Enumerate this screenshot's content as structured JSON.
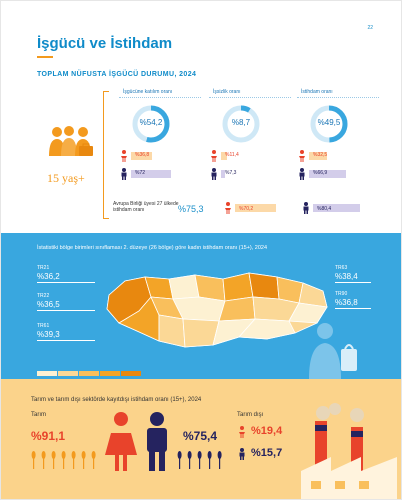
{
  "page_number": "22",
  "title": "İşgücü ve İstihdam",
  "subtitle": "TOPLAM NÜFUSTA İŞGÜCÜ DURUMU, 2024",
  "age_group": "15 yaş+",
  "columns": [
    {
      "title": "İşgücüne katılım oranı",
      "total": "%54,2",
      "female": "%36,8",
      "male": "%72",
      "total_frac": 0.542,
      "female_frac": 0.368,
      "male_frac": 0.72
    },
    {
      "title": "İşsizlik oranı",
      "total": "%8,7",
      "female": "%11,4",
      "male": "%7,3",
      "total_frac": 0.087,
      "female_frac": 0.114,
      "male_frac": 0.073
    },
    {
      "title": "İstihdam oranı",
      "total": "%49,5",
      "female": "%32,5",
      "male": "%66,9",
      "total_frac": 0.495,
      "female_frac": 0.325,
      "male_frac": 0.669
    }
  ],
  "eu": {
    "label": "Avrupa Birliği üyesi 27 ülkede istihdam oranı",
    "total": "%75,3",
    "female": "%70,2",
    "male": "%80,4",
    "female_frac": 0.702,
    "male_frac": 0.804
  },
  "map": {
    "title": "İstatistiki bölge birimleri sınıflaması 2. düzeye (26 bölge) göre kadın istihdam oranı (15+), 2024",
    "regions": [
      {
        "code": "TR21",
        "value": "%36,2"
      },
      {
        "code": "TR22",
        "value": "%36,5"
      },
      {
        "code": "TR61",
        "value": "%39,3"
      },
      {
        "code": "TR63",
        "value": "%38,4"
      },
      {
        "code": "TR90",
        "value": "%36,8"
      }
    ],
    "legend_colors": [
      "#fdf1d2",
      "#fbd896",
      "#f9bf5c",
      "#f3a427",
      "#e8880f"
    ]
  },
  "bottom": {
    "title": "Tarım ve tarım dışı sektörde kayıtdışı istihdam oranı (15+), 2024",
    "tarim_label": "Tarım",
    "tarim_female": "%91,1",
    "tarim_male": "%75,4",
    "tarim_disi_label": "Tarım dışı",
    "tarim_disi_female": "%19,4",
    "tarim_disi_male": "%15,7"
  },
  "colors": {
    "blue": "#0f8bc9",
    "orange": "#f39a1e",
    "navy": "#25235f",
    "female_bar": "#fcd9a8",
    "male_bar": "#d3cdea",
    "map_bg": "#39a7df",
    "bottom_bg": "#fbd38b",
    "red": "#e8432b"
  }
}
